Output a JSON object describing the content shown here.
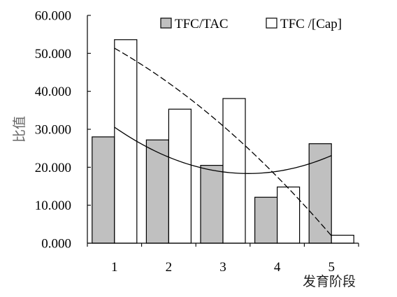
{
  "chart_data": {
    "type": "bar",
    "categories": [
      "1",
      "2",
      "3",
      "4",
      "5"
    ],
    "series": [
      {
        "name": "TFC/TAC",
        "values": [
          28.0,
          27.2,
          20.5,
          12.1,
          26.2
        ],
        "color": "#c0c0c0",
        "trendline": {
          "type": "polynomial",
          "order": 2,
          "style": "solid"
        }
      },
      {
        "name": "TFC /[Cap]",
        "values": [
          53.6,
          35.3,
          38.1,
          14.8,
          2.1
        ],
        "color": "#ffffff",
        "trendline": {
          "type": "polynomial",
          "order": 2,
          "style": "dashed"
        }
      }
    ],
    "xlabel": "发育阶段",
    "ylabel": "比值",
    "ylim": [
      0,
      60
    ],
    "ytick_labels": [
      "0.000",
      "10.000",
      "20.000",
      "30.000",
      "40.000",
      "50.000",
      "60.000"
    ],
    "grid": false,
    "legend": "top"
  }
}
